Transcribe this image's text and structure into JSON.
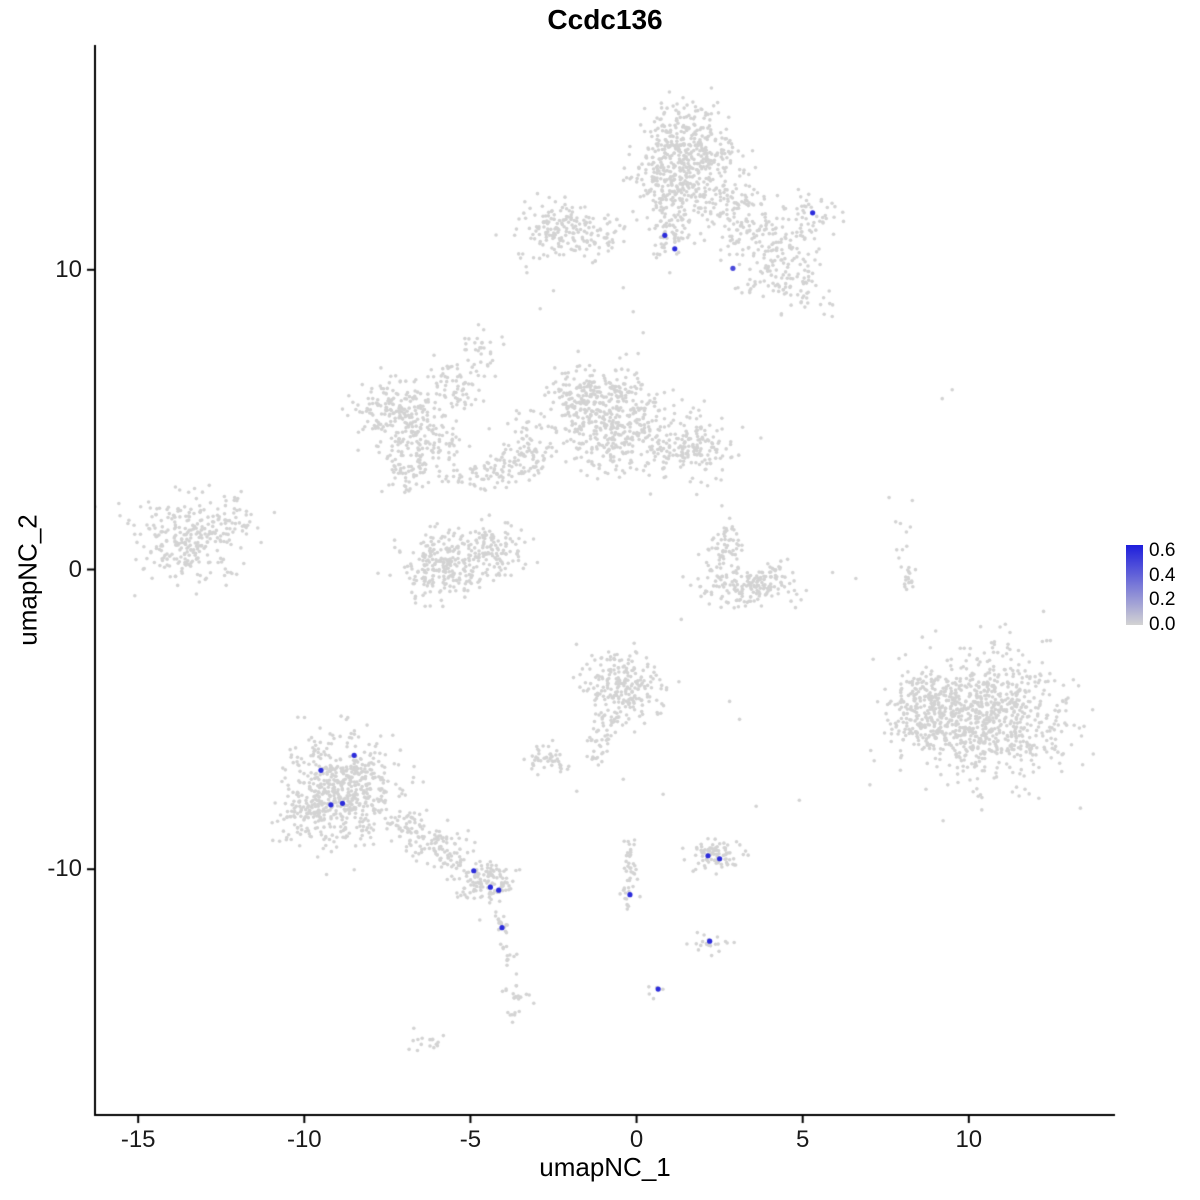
{
  "chart": {
    "title": "Ccdc136",
    "x_axis": {
      "label": "umapNC_1",
      "tick_labels": [
        "-15",
        "-10",
        "-5",
        "0",
        "5",
        "10"
      ],
      "tick_values": [
        -15,
        -10,
        -5,
        0,
        5,
        10
      ]
    },
    "y_axis": {
      "label": "umapNC_2",
      "tick_labels": [
        "10",
        "0",
        "-10"
      ],
      "tick_values": [
        10,
        0,
        -10
      ]
    },
    "legend": {
      "tick_labels": [
        "0.6",
        "0.4",
        "0.2",
        "0.0"
      ],
      "tick_values": [
        0.6,
        0.4,
        0.2,
        0.0
      ],
      "max_value": 0.65,
      "low_color": "#D3D3D3",
      "high_color": "#1E1EDC"
    }
  },
  "chart_data": {
    "type": "scatter",
    "title": "Ccdc136",
    "xlabel": "umapNC_1",
    "ylabel": "umapNC_2",
    "xlim": [
      -16.3,
      14.4
    ],
    "ylim": [
      -18.2,
      17.5
    ],
    "grid": false,
    "legend_position": "right",
    "point_color_low": "#D3D3D3",
    "point_color_high": "#1E1EDC",
    "color_scale_max": 0.65,
    "seed": 42,
    "background_clusters": [
      {
        "cx": 1.4,
        "cy": 13.9,
        "sx": 0.75,
        "sy": 0.75,
        "n": 430
      },
      {
        "cx": 1.0,
        "cy": 12.4,
        "sx": 0.55,
        "sy": 0.5,
        "n": 100
      },
      {
        "cx": 0.95,
        "cy": 11.25,
        "sx": 0.28,
        "sy": 0.4,
        "n": 55
      },
      {
        "cx": 2.6,
        "cy": 12.2,
        "sx": 0.65,
        "sy": 0.6,
        "n": 110
      },
      {
        "cx": 3.6,
        "cy": 11.2,
        "sx": 0.55,
        "sy": 0.6,
        "n": 85
      },
      {
        "cx": 4.6,
        "cy": 10.5,
        "sx": 0.5,
        "sy": 0.55,
        "n": 65
      },
      {
        "cx": 5.3,
        "cy": 11.8,
        "sx": 0.45,
        "sy": 0.4,
        "n": 45
      },
      {
        "cx": 5.0,
        "cy": 9.3,
        "sx": 0.45,
        "sy": 0.45,
        "n": 40
      },
      {
        "cx": 3.9,
        "cy": 9.7,
        "sx": 0.4,
        "sy": 0.4,
        "n": 35
      },
      {
        "cx": -2.3,
        "cy": 11.3,
        "sx": 0.65,
        "sy": 0.5,
        "n": 160
      },
      {
        "cx": -1.1,
        "cy": 11.1,
        "sx": 0.4,
        "sy": 0.35,
        "n": 40
      },
      {
        "cx": -4.7,
        "cy": 7.4,
        "sx": 0.28,
        "sy": 0.35,
        "n": 26
      },
      {
        "cx": -7.2,
        "cy": 5.3,
        "sx": 0.6,
        "sy": 0.6,
        "n": 190
      },
      {
        "cx": -6.4,
        "cy": 4.3,
        "sx": 0.5,
        "sy": 0.5,
        "n": 110
      },
      {
        "cx": -5.4,
        "cy": 6.1,
        "sx": 0.45,
        "sy": 0.5,
        "n": 70
      },
      {
        "cx": -6.9,
        "cy": 3.3,
        "sx": 0.4,
        "sy": 0.35,
        "n": 55
      },
      {
        "cx": -0.6,
        "cy": 4.9,
        "sx": 0.85,
        "sy": 0.8,
        "n": 430
      },
      {
        "cx": -1.7,
        "cy": 5.7,
        "sx": 0.5,
        "sy": 0.55,
        "n": 120
      },
      {
        "cx": 1.7,
        "cy": 4.1,
        "sx": 0.6,
        "sy": 0.5,
        "n": 150
      },
      {
        "cx": -3.3,
        "cy": 4.4,
        "sx": 0.45,
        "sy": 0.5,
        "n": 55
      },
      {
        "cx": -5.9,
        "cy": 0.1,
        "sx": 0.6,
        "sy": 0.55,
        "n": 230
      },
      {
        "cx": -4.3,
        "cy": 0.6,
        "sx": 0.5,
        "sy": 0.45,
        "n": 130
      },
      {
        "cx": -13.6,
        "cy": 1.0,
        "sx": 0.8,
        "sy": 0.7,
        "n": 260
      },
      {
        "cx": -12.3,
        "cy": 1.7,
        "sx": 0.45,
        "sy": 0.5,
        "n": 40
      },
      {
        "cx": 3.3,
        "cy": -0.6,
        "sx": 0.65,
        "sy": 0.33,
        "n": 140
      },
      {
        "cx": 2.6,
        "cy": 0.4,
        "sx": 0.3,
        "sy": 0.4,
        "n": 45
      },
      {
        "cx": 2.85,
        "cy": 1.2,
        "sx": 0.28,
        "sy": 0.3,
        "n": 22
      },
      {
        "cx": 4.15,
        "cy": -0.3,
        "sx": 0.35,
        "sy": 0.28,
        "n": 35
      },
      {
        "cx": 10.6,
        "cy": -4.9,
        "sx": 1.15,
        "sy": 1.05,
        "n": 780
      },
      {
        "cx": 8.7,
        "cy": -4.7,
        "sx": 0.55,
        "sy": 0.7,
        "n": 240
      },
      {
        "cx": -0.4,
        "cy": -3.9,
        "sx": 0.6,
        "sy": 0.6,
        "n": 230
      },
      {
        "cx": -2.7,
        "cy": -6.4,
        "sx": 0.3,
        "sy": 0.25,
        "n": 45
      },
      {
        "cx": -8.8,
        "cy": -7.3,
        "sx": 0.85,
        "sy": 0.95,
        "n": 540
      },
      {
        "cx": -9.9,
        "cy": -8.3,
        "sx": 0.45,
        "sy": 0.5,
        "n": 80
      },
      {
        "cx": -4.5,
        "cy": -10.5,
        "sx": 0.42,
        "sy": 0.35,
        "n": 115
      },
      {
        "cx": -3.6,
        "cy": -14.3,
        "sx": 0.25,
        "sy": 0.5,
        "n": 24
      },
      {
        "cx": -6.2,
        "cy": -15.8,
        "sx": 0.3,
        "sy": 0.18,
        "n": 16
      },
      {
        "cx": 2.4,
        "cy": -9.5,
        "sx": 0.42,
        "sy": 0.22,
        "n": 85
      },
      {
        "cx": 2.25,
        "cy": -12.45,
        "sx": 0.25,
        "sy": 0.2,
        "n": 20
      },
      {
        "cx": 0.6,
        "cy": -14.0,
        "sx": 0.2,
        "sy": 0.15,
        "n": 5
      }
    ],
    "line_clusters": [
      {
        "x1": -5.6,
        "y1": 3.1,
        "x2": -2.7,
        "y2": 3.6,
        "jitter": 0.3,
        "n": 110
      },
      {
        "x1": 8.0,
        "y1": 1.5,
        "x2": 8.2,
        "y2": -0.8,
        "jitter": 0.12,
        "n": 26
      },
      {
        "x1": -0.9,
        "y1": -4.9,
        "x2": -1.2,
        "y2": -6.4,
        "jitter": 0.18,
        "n": 45
      },
      {
        "x1": -7.3,
        "y1": -8.5,
        "x2": -5.0,
        "y2": -9.9,
        "jitter": 0.32,
        "n": 150
      },
      {
        "x1": -4.1,
        "y1": -11.2,
        "x2": -3.8,
        "y2": -13.1,
        "jitter": 0.12,
        "n": 28
      },
      {
        "x1": -0.1,
        "y1": -8.9,
        "x2": -0.35,
        "y2": -11.4,
        "jitter": 0.15,
        "n": 45
      }
    ],
    "sparse_points": [
      [
        -11.9,
        2.6
      ],
      [
        -11.3,
        0.9
      ],
      [
        -12.4,
        -0.2
      ],
      [
        -10.9,
        1.9
      ],
      [
        9.2,
        5.7
      ],
      [
        9.5,
        6.0
      ],
      [
        7.6,
        2.4
      ],
      [
        8.3,
        2.3
      ],
      [
        2.8,
        -4.4
      ],
      [
        3.1,
        -5.0
      ],
      [
        3.6,
        -7.9
      ],
      [
        4.9,
        -7.7
      ],
      [
        -2.9,
        8.7
      ],
      [
        -2.5,
        9.3
      ],
      [
        -3.3,
        9.9
      ],
      [
        -3.1,
        10.4
      ],
      [
        0.2,
        7.9
      ],
      [
        -0.1,
        8.6
      ],
      [
        1.0,
        9.9
      ],
      [
        0.6,
        10.4
      ],
      [
        -0.4,
        9.4
      ],
      [
        6.6,
        -0.3
      ],
      [
        5.9,
        -0.1
      ],
      [
        -1.8,
        -7.4
      ],
      [
        0.8,
        -7.5
      ],
      [
        -0.4,
        -7.0
      ]
    ],
    "highlighted_points": [
      {
        "x": 0.85,
        "y": 11.15,
        "value": 0.6
      },
      {
        "x": 1.15,
        "y": 10.7,
        "value": 0.6
      },
      {
        "x": 2.9,
        "y": 10.05,
        "value": 0.5
      },
      {
        "x": 5.3,
        "y": 11.9,
        "value": 0.6
      },
      {
        "x": -9.5,
        "y": -6.7,
        "value": 0.6
      },
      {
        "x": -8.5,
        "y": -6.2,
        "value": 0.6
      },
      {
        "x": -9.2,
        "y": -7.85,
        "value": 0.6
      },
      {
        "x": -8.85,
        "y": -7.8,
        "value": 0.6
      },
      {
        "x": -4.9,
        "y": -10.05,
        "value": 0.6
      },
      {
        "x": -4.4,
        "y": -10.6,
        "value": 0.6
      },
      {
        "x": -4.15,
        "y": -10.7,
        "value": 0.6
      },
      {
        "x": -4.05,
        "y": -11.95,
        "value": 0.6
      },
      {
        "x": -0.2,
        "y": -10.85,
        "value": 0.6
      },
      {
        "x": 0.65,
        "y": -14.0,
        "value": 0.6
      },
      {
        "x": 2.15,
        "y": -9.55,
        "value": 0.6
      },
      {
        "x": 2.5,
        "y": -9.65,
        "value": 0.6
      },
      {
        "x": 2.2,
        "y": -12.4,
        "value": 0.6
      }
    ]
  }
}
